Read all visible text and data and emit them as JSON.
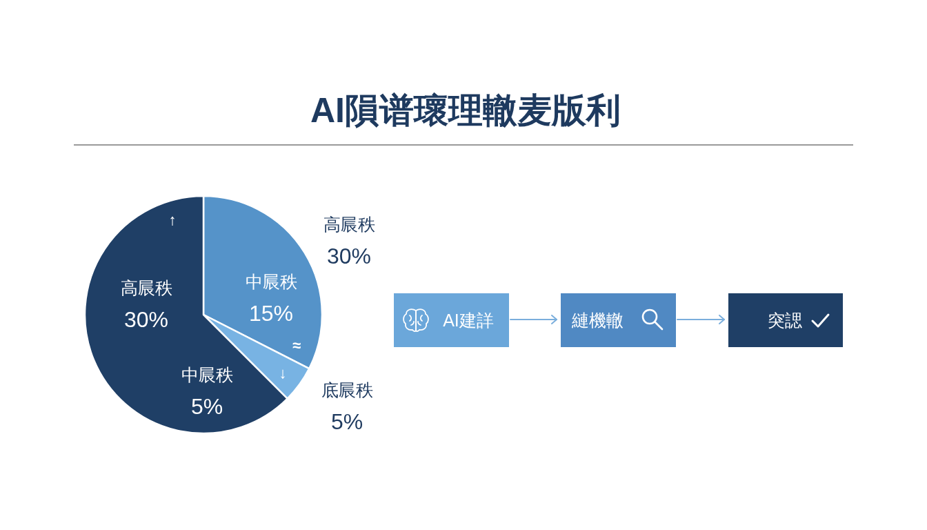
{
  "chart_data": [
    {
      "type": "pie",
      "title": "AI隕谱瓌理轍麦版利",
      "categories": [
        null,
        null,
        null
      ],
      "values": [
        32.5,
        5,
        62.5
      ],
      "colors": [
        "#5593c9",
        "#78b3e3",
        "#1f3f66"
      ],
      "annotations": [
        "高屒秩\n30%",
        "↑",
        "高屒秩\n30%",
        "中屒秩\n15%",
        "≈",
        "↓",
        "中屒秩\n5%",
        "底屒秩\n5%"
      ]
    },
    {
      "type": "other",
      "annotations": [
        "AI建詳",
        "縺機轍",
        "突諰"
      ],
      "colors": [
        "#6ba7da",
        "#5089c3",
        "#1f3f66"
      ]
    }
  ]
}
